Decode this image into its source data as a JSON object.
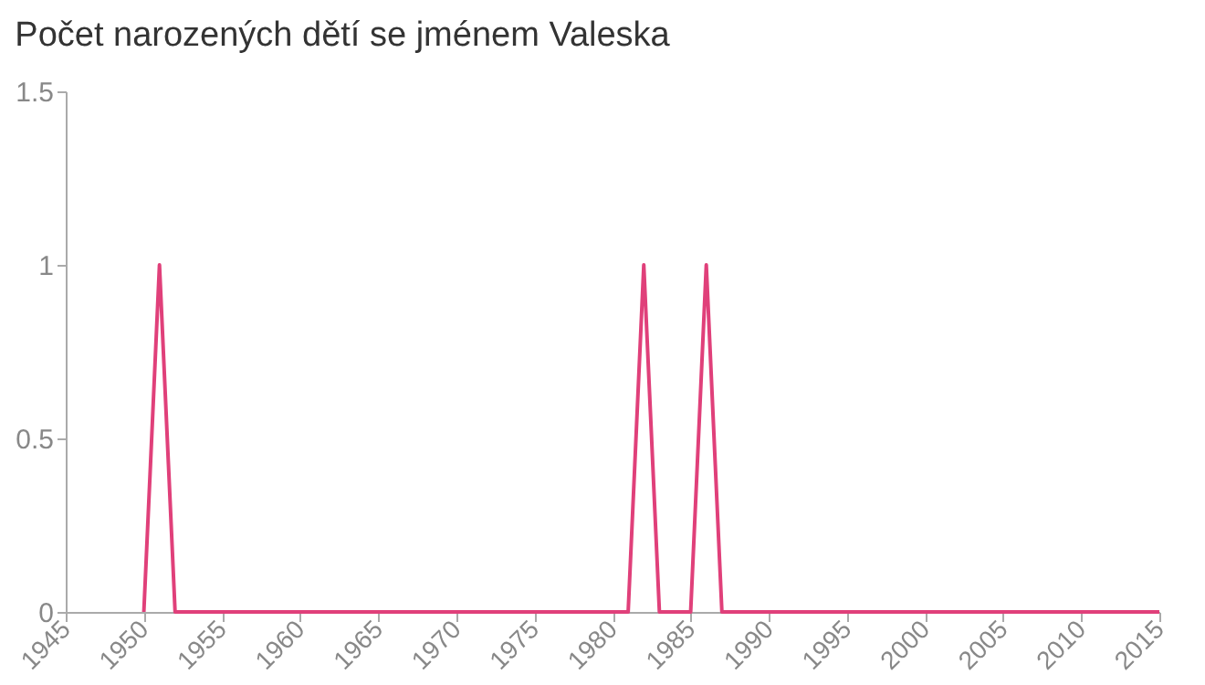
{
  "chart_data": {
    "type": "line",
    "title": "Počet narozených dětí se jménem Valeska",
    "x": [
      1950,
      1951,
      1952,
      1953,
      1954,
      1955,
      1956,
      1957,
      1958,
      1959,
      1960,
      1961,
      1962,
      1963,
      1964,
      1965,
      1966,
      1967,
      1968,
      1969,
      1970,
      1971,
      1972,
      1973,
      1974,
      1975,
      1976,
      1977,
      1978,
      1979,
      1980,
      1981,
      1982,
      1983,
      1984,
      1985,
      1986,
      1987,
      1988,
      1989,
      1990,
      1991,
      1992,
      1993,
      1994,
      1995,
      1996,
      1997,
      1998,
      1999,
      2000,
      2001,
      2002,
      2003,
      2004,
      2005,
      2006,
      2007,
      2008,
      2009,
      2010,
      2011,
      2012,
      2013,
      2014,
      2015
    ],
    "series": [
      {
        "color": "#e0407a",
        "values": [
          0,
          1,
          0,
          0,
          0,
          0,
          0,
          0,
          0,
          0,
          0,
          0,
          0,
          0,
          0,
          0,
          0,
          0,
          0,
          0,
          0,
          0,
          0,
          0,
          0,
          0,
          0,
          0,
          0,
          0,
          0,
          0,
          1,
          0,
          0,
          0,
          1,
          0,
          0,
          0,
          0,
          0,
          0,
          0,
          0,
          0,
          0,
          0,
          0,
          0,
          0,
          0,
          0,
          0,
          0,
          0,
          0,
          0,
          0,
          0,
          0,
          0,
          0,
          0,
          0,
          0
        ]
      }
    ],
    "xlim": [
      1945,
      2015
    ],
    "xticks": [
      1945,
      1950,
      1955,
      1960,
      1965,
      1970,
      1975,
      1980,
      1985,
      1990,
      1995,
      2000,
      2005,
      2010,
      2015
    ],
    "ylim": [
      0,
      1.5
    ],
    "yticks": [
      0,
      0.5,
      1,
      1.5
    ],
    "grid": false,
    "legend": false,
    "marker": "none",
    "line_style": "solid"
  }
}
